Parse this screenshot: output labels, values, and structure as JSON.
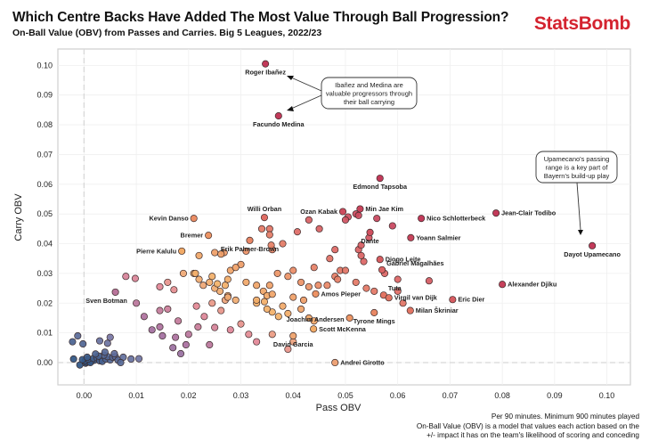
{
  "header": {
    "title": "Which Centre Backs Have Added The Most Value Through Ball Progression?",
    "subtitle": "On-Ball Value (OBV) from Passes and Carries. Big 5 Leagues, 2022/23",
    "brand": "StatsBomb"
  },
  "colors": {
    "brand": "#d4232f",
    "low": "#2f5583",
    "mid_purple": "#a46d9e",
    "mid_pink": "#e08a9a",
    "mid_orange": "#f2b466",
    "high": "#c23a5a"
  },
  "footnote": {
    "line1": "Per 90 minutes. Minimum 900 minutes played",
    "line2": "On-Ball Value (OBV) is a model that values each action based on the",
    "line3": "+/- impact it has on the team's likelihood of scoring and conceding"
  },
  "chart_data": {
    "type": "scatter",
    "title": "Which Centre Backs Have Added The Most Value Through Ball Progression?",
    "subtitle": "On-Ball Value (OBV) from Passes and Carries. Big 5 Leagues, 2022/23",
    "xlabel": "Pass OBV",
    "ylabel": "Carry OBV",
    "xlim": [
      -0.005,
      0.1045
    ],
    "ylim": [
      -0.0075,
      0.1055
    ],
    "xticks": [
      "0.00",
      "0.01",
      "0.02",
      "0.03",
      "0.04",
      "0.05",
      "0.06",
      "0.07",
      "0.08",
      "0.09",
      "0.10"
    ],
    "yticks": [
      "0.00",
      "0.01",
      "0.02",
      "0.03",
      "0.04",
      "0.05",
      "0.06",
      "0.07",
      "0.08",
      "0.09",
      "0.10"
    ],
    "grid": true,
    "zero_lines": "dashed",
    "labeled_points": [
      {
        "name": "Roger Ibañez",
        "x": 0.0347,
        "y": 0.1005,
        "label_pos": "below"
      },
      {
        "name": "Facundo Medina",
        "x": 0.0372,
        "y": 0.083,
        "label_pos": "below"
      },
      {
        "name": "Edmond Tapsoba",
        "x": 0.0566,
        "y": 0.062,
        "label_pos": "below"
      },
      {
        "name": "Jean-Clair Todibo",
        "x": 0.0788,
        "y": 0.0503,
        "label_pos": "right"
      },
      {
        "name": "Nico Schlotterbeck",
        "x": 0.0645,
        "y": 0.0485,
        "label_pos": "right"
      },
      {
        "name": "Min Jae Kim",
        "x": 0.0528,
        "y": 0.0517,
        "label_pos": "right"
      },
      {
        "name": "Ozan Kabak",
        "x": 0.0495,
        "y": 0.0508,
        "label_pos": "left"
      },
      {
        "name": "Willi Orban",
        "x": 0.0345,
        "y": 0.0488,
        "label_pos": "above"
      },
      {
        "name": "Kevin Danso",
        "x": 0.021,
        "y": 0.0485,
        "label_pos": "left"
      },
      {
        "name": "Yoann Salmier",
        "x": 0.0625,
        "y": 0.042,
        "label_pos": "right"
      },
      {
        "name": "Dante",
        "x": 0.0547,
        "y": 0.0438,
        "label_pos": "below"
      },
      {
        "name": "Bremer",
        "x": 0.0238,
        "y": 0.0428,
        "label_pos": "left"
      },
      {
        "name": "Erik Palmer-Brown",
        "x": 0.0317,
        "y": 0.0411,
        "label_pos": "below"
      },
      {
        "name": "Dayot Upamecano",
        "x": 0.0972,
        "y": 0.0393,
        "label_pos": "below"
      },
      {
        "name": "Pierre Kalulu",
        "x": 0.0187,
        "y": 0.0375,
        "label_pos": "left"
      },
      {
        "name": "Diogo Leite",
        "x": 0.0566,
        "y": 0.0347,
        "label_pos": "right"
      },
      {
        "name": "Gabriel Magalhães",
        "x": 0.057,
        "y": 0.0312,
        "label_pos": "above-right"
      },
      {
        "name": "Alexander Djiku",
        "x": 0.08,
        "y": 0.0263,
        "label_pos": "right"
      },
      {
        "name": "Sven Botman",
        "x": 0.006,
        "y": 0.0237,
        "label_pos": "below-left"
      },
      {
        "name": "Amos Pieper",
        "x": 0.0443,
        "y": 0.0231,
        "label_pos": "right"
      },
      {
        "name": "Tuta",
        "x": 0.0573,
        "y": 0.0227,
        "label_pos": "above-right"
      },
      {
        "name": "Eric Dier",
        "x": 0.0705,
        "y": 0.0212,
        "label_pos": "right"
      },
      {
        "name": "Virgil van Dijk",
        "x": 0.0583,
        "y": 0.0218,
        "label_pos": "right"
      },
      {
        "name": "Joachim Andersen",
        "x": 0.0508,
        "y": 0.015,
        "label_pos": "left-below"
      },
      {
        "name": "Tyrone Mings",
        "x": 0.0555,
        "y": 0.0168,
        "label_pos": "below"
      },
      {
        "name": "Milan Škriniar",
        "x": 0.0624,
        "y": 0.0175,
        "label_pos": "right"
      },
      {
        "name": "Scott McKenna",
        "x": 0.0439,
        "y": 0.0113,
        "label_pos": "right"
      },
      {
        "name": "David Garcia",
        "x": 0.04,
        "y": 0.009,
        "label_pos": "below"
      },
      {
        "name": "Andrei Girotto",
        "x": 0.048,
        "y": 0.0,
        "label_pos": "right"
      }
    ],
    "other_points": [
      [
        -0.0008,
        -0.0008
      ],
      [
        0.0003,
        -0.0002
      ],
      [
        0.0005,
        0.0001
      ],
      [
        0.001,
        0.0003
      ],
      [
        0.0015,
        0.0005
      ],
      [
        0.002,
        0.0008
      ],
      [
        0.0012,
        0.0
      ],
      [
        0.0002,
        0.0006
      ],
      [
        0.0008,
        0.0012
      ],
      [
        0.0018,
        0.0014
      ],
      [
        0.0025,
        0.0016
      ],
      [
        0.003,
        0.0006
      ],
      [
        0.0035,
        0.0004
      ],
      [
        0.0042,
        0.0012
      ],
      [
        0.005,
        0.0009
      ],
      [
        0.0045,
        0.002
      ],
      [
        0.0055,
        0.0018
      ],
      [
        0.0038,
        0.0025
      ],
      [
        0.0028,
        0.0022
      ],
      [
        0.006,
        0.002
      ],
      [
        0.0065,
        0.0008
      ],
      [
        -0.0003,
        0.001
      ],
      [
        0.0006,
        0.0018
      ],
      [
        0.0022,
        0.0029
      ],
      [
        0.004,
        0.0035
      ],
      [
        0.0058,
        0.003
      ],
      [
        0.0075,
        0.0018
      ],
      [
        0.009,
        0.0012
      ],
      [
        0.007,
        0.0
      ],
      [
        -0.002,
        0.0012
      ],
      [
        -0.0022,
        0.007
      ],
      [
        -0.0002,
        0.0063
      ],
      [
        0.003,
        0.0073
      ],
      [
        0.0045,
        0.0065
      ],
      [
        0.005,
        0.0085
      ],
      [
        -0.0012,
        0.009
      ],
      [
        0.0105,
        0.0013
      ],
      [
        0.01,
        0.02
      ],
      [
        0.0145,
        0.0175
      ],
      [
        0.016,
        0.018
      ],
      [
        0.018,
        0.014
      ],
      [
        0.0145,
        0.012
      ],
      [
        0.015,
        0.009
      ],
      [
        0.0175,
        0.0085
      ],
      [
        0.017,
        0.005
      ],
      [
        0.0115,
        0.0155
      ],
      [
        0.013,
        0.011
      ],
      [
        0.0195,
        0.006
      ],
      [
        0.02,
        0.0095
      ],
      [
        0.0185,
        0.003
      ],
      [
        0.008,
        0.029
      ],
      [
        0.0098,
        0.0283
      ],
      [
        0.0145,
        0.0255
      ],
      [
        0.016,
        0.027
      ],
      [
        0.0172,
        0.0245
      ],
      [
        0.0215,
        0.019
      ],
      [
        0.023,
        0.0155
      ],
      [
        0.0245,
        0.02
      ],
      [
        0.025,
        0.0118
      ],
      [
        0.0218,
        0.012
      ],
      [
        0.024,
        0.006
      ],
      [
        0.0262,
        0.0175
      ],
      [
        0.027,
        0.021
      ],
      [
        0.028,
        0.011
      ],
      [
        0.03,
        0.013
      ],
      [
        0.0315,
        0.0095
      ],
      [
        0.033,
        0.007
      ],
      [
        0.036,
        0.0095
      ],
      [
        0.039,
        0.0045
      ],
      [
        0.04,
        0.007
      ],
      [
        0.0228,
        0.026
      ],
      [
        0.0245,
        0.029
      ],
      [
        0.026,
        0.024
      ],
      [
        0.0275,
        0.0225
      ],
      [
        0.021,
        0.03
      ],
      [
        0.019,
        0.03
      ],
      [
        0.0213,
        0.03
      ],
      [
        0.022,
        0.036
      ],
      [
        0.025,
        0.037
      ],
      [
        0.0268,
        0.037
      ],
      [
        0.0262,
        0.0365
      ],
      [
        0.031,
        0.0375
      ],
      [
        0.03,
        0.033
      ],
      [
        0.028,
        0.031
      ],
      [
        0.029,
        0.032
      ],
      [
        0.022,
        0.028
      ],
      [
        0.024,
        0.027
      ],
      [
        0.025,
        0.025
      ],
      [
        0.0255,
        0.0265
      ],
      [
        0.027,
        0.026
      ],
      [
        0.0275,
        0.028
      ],
      [
        0.031,
        0.027
      ],
      [
        0.033,
        0.026
      ],
      [
        0.0343,
        0.024
      ],
      [
        0.035,
        0.0225
      ],
      [
        0.036,
        0.023
      ],
      [
        0.033,
        0.02
      ],
      [
        0.033,
        0.021
      ],
      [
        0.029,
        0.021
      ],
      [
        0.0275,
        0.022
      ],
      [
        0.0345,
        0.0205
      ],
      [
        0.036,
        0.017
      ],
      [
        0.0372,
        0.0155
      ],
      [
        0.035,
        0.018
      ],
      [
        0.038,
        0.019
      ],
      [
        0.04,
        0.022
      ],
      [
        0.042,
        0.021
      ],
      [
        0.0415,
        0.018
      ],
      [
        0.043,
        0.015
      ],
      [
        0.039,
        0.0165
      ],
      [
        0.044,
        0.014
      ],
      [
        0.034,
        0.045
      ],
      [
        0.0355,
        0.045
      ],
      [
        0.0355,
        0.043
      ],
      [
        0.0408,
        0.044
      ],
      [
        0.045,
        0.045
      ],
      [
        0.043,
        0.048
      ],
      [
        0.038,
        0.04
      ],
      [
        0.036,
        0.038
      ],
      [
        0.0358,
        0.0395
      ],
      [
        0.04,
        0.031
      ],
      [
        0.044,
        0.032
      ],
      [
        0.037,
        0.03
      ],
      [
        0.039,
        0.029
      ],
      [
        0.0415,
        0.027
      ],
      [
        0.0355,
        0.026
      ],
      [
        0.043,
        0.0255
      ],
      [
        0.0448,
        0.026
      ],
      [
        0.0465,
        0.026
      ],
      [
        0.048,
        0.029
      ],
      [
        0.049,
        0.031
      ],
      [
        0.047,
        0.035
      ],
      [
        0.048,
        0.038
      ],
      [
        0.05,
        0.031
      ],
      [
        0.052,
        0.027
      ],
      [
        0.054,
        0.025
      ],
      [
        0.0555,
        0.024
      ],
      [
        0.0535,
        0.034
      ],
      [
        0.053,
        0.036
      ],
      [
        0.0525,
        0.038
      ],
      [
        0.053,
        0.0395
      ],
      [
        0.0545,
        0.042
      ],
      [
        0.056,
        0.0485
      ],
      [
        0.059,
        0.046
      ],
      [
        0.052,
        0.05
      ],
      [
        0.0505,
        0.049
      ],
      [
        0.05,
        0.048
      ],
      [
        0.0525,
        0.0495
      ],
      [
        0.0485,
        0.028
      ],
      [
        0.06,
        0.028
      ],
      [
        0.061,
        0.02
      ],
      [
        0.066,
        0.0275
      ],
      [
        0.06,
        0.024
      ],
      [
        0.0575,
        0.03
      ]
    ]
  }
}
